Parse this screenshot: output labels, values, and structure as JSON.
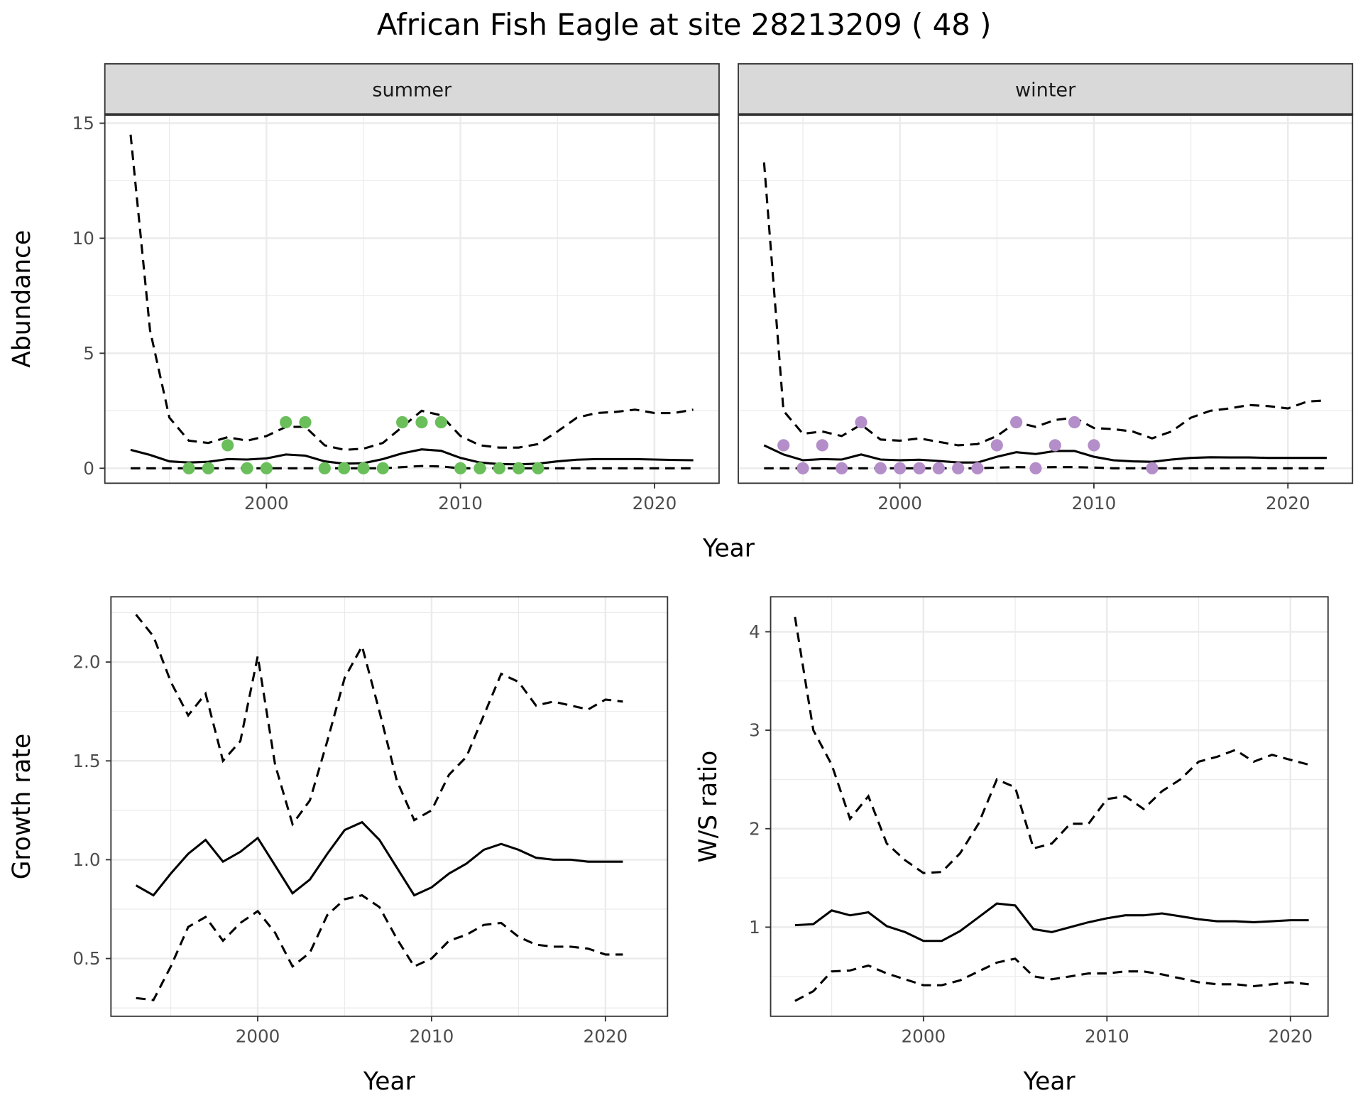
{
  "title": "African Fish Eagle at site 28213209 ( 48 )",
  "colors": {
    "summer_points": "#6abf5b",
    "winter_points": "#b48ec9",
    "line": "#000000",
    "strip_fill": "#d9d9d9",
    "grid": "#ebebeb"
  },
  "chart_data": [
    {
      "id": "summer",
      "type": "line",
      "facet": "summer",
      "xlabel": "Year",
      "ylabel": "Abundance",
      "xlim": [
        1991.67,
        2023.33
      ],
      "ylim": [
        -0.65,
        15.38
      ],
      "xticks": [
        2000,
        2010,
        2020
      ],
      "yticks": [
        0,
        5,
        10,
        15
      ],
      "grid": true,
      "x": [
        1993,
        1994,
        1995,
        1996,
        1997,
        1998,
        1999,
        2000,
        2001,
        2002,
        2003,
        2004,
        2005,
        2006,
        2007,
        2008,
        2009,
        2010,
        2011,
        2012,
        2013,
        2014,
        2015,
        2016,
        2017,
        2018,
        2019,
        2020,
        2021,
        2022
      ],
      "mean": [
        0.8,
        0.58,
        0.3,
        0.25,
        0.28,
        0.4,
        0.38,
        0.43,
        0.6,
        0.55,
        0.3,
        0.2,
        0.22,
        0.4,
        0.65,
        0.82,
        0.76,
        0.45,
        0.25,
        0.18,
        0.17,
        0.2,
        0.3,
        0.37,
        0.4,
        0.4,
        0.4,
        0.38,
        0.36,
        0.35
      ],
      "upper": [
        14.5,
        6,
        2.2,
        1.2,
        1.1,
        1.35,
        1.2,
        1.4,
        1.8,
        1.8,
        1.0,
        0.8,
        0.85,
        1.1,
        1.8,
        2.5,
        2.3,
        1.4,
        1.0,
        0.9,
        0.9,
        1.05,
        1.6,
        2.2,
        2.4,
        2.45,
        2.55,
        2.4,
        2.4,
        2.55
      ],
      "lower": [
        0,
        0,
        0,
        0,
        0,
        0,
        0,
        0,
        0,
        0,
        0,
        0,
        0,
        0,
        0.05,
        0.1,
        0.08,
        0,
        0,
        0,
        0,
        0,
        0,
        0,
        0,
        0,
        0,
        0,
        0,
        0
      ],
      "points": {
        "x": [
          1996,
          1997,
          1998,
          1999,
          2000,
          2001,
          2002,
          2003,
          2004,
          2005,
          2006,
          2007,
          2008,
          2009,
          2010,
          2011,
          2012,
          2013,
          2014
        ],
        "y": [
          0,
          0,
          1,
          0,
          0,
          2,
          2,
          0,
          0,
          0,
          0,
          2,
          2,
          2,
          0,
          0,
          0,
          0,
          0
        ]
      }
    },
    {
      "id": "winter",
      "type": "line",
      "facet": "winter",
      "xlabel": "Year",
      "ylabel": "",
      "xlim": [
        1991.67,
        2023.33
      ],
      "ylim": [
        -0.65,
        15.38
      ],
      "xticks": [
        2000,
        2010,
        2020
      ],
      "yticks": [
        0,
        5,
        10,
        15
      ],
      "grid": true,
      "x": [
        1993,
        1994,
        1995,
        1996,
        1997,
        1998,
        1999,
        2000,
        2001,
        2002,
        2003,
        2004,
        2005,
        2006,
        2007,
        2008,
        2009,
        2010,
        2011,
        2012,
        2013,
        2014,
        2015,
        2016,
        2017,
        2018,
        2019,
        2020,
        2021,
        2022
      ],
      "mean": [
        1.0,
        0.6,
        0.35,
        0.4,
        0.38,
        0.6,
        0.38,
        0.35,
        0.37,
        0.32,
        0.25,
        0.25,
        0.5,
        0.7,
        0.62,
        0.75,
        0.75,
        0.5,
        0.35,
        0.3,
        0.28,
        0.38,
        0.45,
        0.48,
        0.47,
        0.47,
        0.45,
        0.45,
        0.45,
        0.45
      ],
      "upper": [
        13.3,
        2.5,
        1.5,
        1.6,
        1.4,
        1.9,
        1.25,
        1.2,
        1.3,
        1.15,
        1.0,
        1.05,
        1.4,
        2.0,
        1.8,
        2.1,
        2.2,
        1.75,
        1.7,
        1.6,
        1.3,
        1.6,
        2.2,
        2.5,
        2.6,
        2.75,
        2.7,
        2.6,
        2.9,
        2.95
      ],
      "lower": [
        0,
        0,
        0,
        0,
        0,
        0,
        0,
        0,
        0,
        0,
        0,
        0,
        0.03,
        0.05,
        0.04,
        0.05,
        0.05,
        0.03,
        0,
        0,
        0,
        0,
        0,
        0,
        0,
        0,
        0,
        0,
        0,
        0
      ],
      "points": {
        "x": [
          1994,
          1995,
          1996,
          1997,
          1998,
          1999,
          2000,
          2001,
          2002,
          2003,
          2004,
          2005,
          2006,
          2007,
          2008,
          2009,
          2010,
          2013
        ],
        "y": [
          1,
          0,
          1,
          0,
          2,
          0,
          0,
          0,
          0,
          0,
          0,
          1,
          2,
          0,
          1,
          2,
          1,
          0
        ]
      }
    },
    {
      "id": "growth",
      "type": "line",
      "xlabel": "Year",
      "ylabel": "Growth rate",
      "xlim": [
        1991.56,
        2023.57
      ],
      "ylim": [
        0.208,
        2.33
      ],
      "xticks": [
        2000,
        2010,
        2020
      ],
      "yticks": [
        0.5,
        1.0,
        1.5,
        2.0
      ],
      "ytick_labels": [
        "0.5",
        "1.0",
        "1.5",
        "2.0"
      ],
      "grid": true,
      "x": [
        1993,
        1994,
        1995,
        1996,
        1997,
        1998,
        1999,
        2000,
        2001,
        2002,
        2003,
        2004,
        2005,
        2006,
        2007,
        2008,
        2009,
        2010,
        2011,
        2012,
        2013,
        2014,
        2015,
        2016,
        2017,
        2018,
        2019,
        2020,
        2021
      ],
      "mean": [
        0.87,
        0.82,
        0.93,
        1.03,
        1.1,
        0.99,
        1.04,
        1.11,
        0.97,
        0.83,
        0.9,
        1.03,
        1.15,
        1.19,
        1.1,
        0.96,
        0.82,
        0.86,
        0.93,
        0.98,
        1.05,
        1.08,
        1.05,
        1.01,
        1.0,
        1.0,
        0.99,
        0.99,
        0.99
      ],
      "upper": [
        2.24,
        2.13,
        1.9,
        1.73,
        1.84,
        1.5,
        1.6,
        2.03,
        1.48,
        1.18,
        1.3,
        1.6,
        1.92,
        2.08,
        1.75,
        1.4,
        1.2,
        1.25,
        1.43,
        1.52,
        1.73,
        1.94,
        1.9,
        1.78,
        1.8,
        1.78,
        1.76,
        1.81,
        1.8
      ],
      "lower": [
        0.3,
        0.29,
        0.46,
        0.66,
        0.71,
        0.59,
        0.68,
        0.74,
        0.63,
        0.46,
        0.53,
        0.72,
        0.8,
        0.82,
        0.76,
        0.6,
        0.46,
        0.5,
        0.59,
        0.62,
        0.67,
        0.68,
        0.61,
        0.57,
        0.56,
        0.56,
        0.55,
        0.52,
        0.52
      ]
    },
    {
      "id": "ws",
      "type": "line",
      "xlabel": "Year",
      "ylabel": "W/S ratio",
      "xlim": [
        1991.67,
        2022.05
      ],
      "ylim": [
        0.095,
        4.355
      ],
      "xticks": [
        2000,
        2010,
        2020
      ],
      "yticks": [
        1,
        2,
        3,
        4
      ],
      "grid": true,
      "x": [
        1993,
        1994,
        1995,
        1996,
        1997,
        1998,
        1999,
        2000,
        2001,
        2002,
        2003,
        2004,
        2005,
        2006,
        2007,
        2008,
        2009,
        2010,
        2011,
        2012,
        2013,
        2014,
        2015,
        2016,
        2017,
        2018,
        2019,
        2020,
        2021
      ],
      "mean": [
        1.02,
        1.03,
        1.17,
        1.12,
        1.15,
        1.01,
        0.95,
        0.86,
        0.86,
        0.96,
        1.1,
        1.24,
        1.22,
        0.98,
        0.95,
        1.0,
        1.05,
        1.09,
        1.12,
        1.12,
        1.14,
        1.11,
        1.08,
        1.06,
        1.06,
        1.05,
        1.06,
        1.07,
        1.07
      ],
      "upper": [
        4.15,
        3.0,
        2.65,
        2.1,
        2.33,
        1.85,
        1.68,
        1.55,
        1.56,
        1.75,
        2.05,
        2.5,
        2.42,
        1.8,
        1.85,
        2.05,
        2.05,
        2.3,
        2.33,
        2.2,
        2.38,
        2.5,
        2.68,
        2.73,
        2.8,
        2.68,
        2.75,
        2.7,
        2.65
      ],
      "lower": [
        0.25,
        0.35,
        0.55,
        0.56,
        0.61,
        0.53,
        0.47,
        0.41,
        0.41,
        0.46,
        0.55,
        0.64,
        0.68,
        0.5,
        0.47,
        0.5,
        0.53,
        0.53,
        0.55,
        0.55,
        0.52,
        0.48,
        0.44,
        0.42,
        0.42,
        0.4,
        0.42,
        0.44,
        0.42
      ]
    }
  ],
  "top_xlabel": "Year"
}
